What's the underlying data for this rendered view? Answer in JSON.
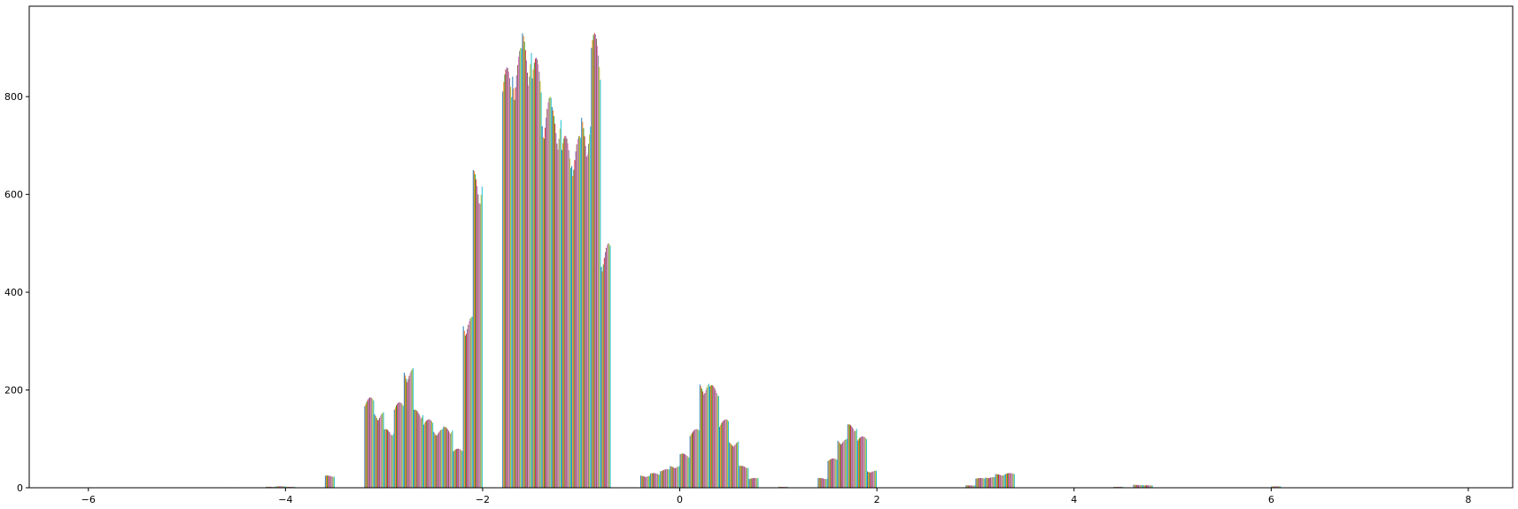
{
  "chart_data": {
    "type": "bar",
    "title": "",
    "xlabel": "",
    "ylabel": "",
    "xlim": [
      -6.6,
      8.45
    ],
    "ylim": [
      0,
      985
    ],
    "x_ticks": [
      -6,
      -4,
      -2,
      0,
      2,
      4,
      6,
      8
    ],
    "x_tick_labels": [
      "−6",
      "−4",
      "−2",
      "0",
      "2",
      "4",
      "6",
      "8"
    ],
    "y_ticks": [
      0,
      200,
      400,
      600,
      800
    ],
    "y_tick_labels": [
      "0",
      "200",
      "400",
      "600",
      "800"
    ],
    "grid": false,
    "legend": "none",
    "bin_width": 0.1,
    "palette": [
      "#1f77b4",
      "#ff7f0e",
      "#2ca02c",
      "#d62728",
      "#9467bd",
      "#8c564b",
      "#e377c2",
      "#7f7f7f",
      "#bcbd22",
      "#17becf"
    ],
    "bins": [
      {
        "x": -4.55,
        "v": 1
      },
      {
        "x": -4.15,
        "v": 2
      },
      {
        "x": -4.05,
        "v": 3
      },
      {
        "x": -3.95,
        "v": 2
      },
      {
        "x": -3.55,
        "v": 25
      },
      {
        "x": -3.15,
        "v": 185
      },
      {
        "x": -3.05,
        "v": 155
      },
      {
        "x": -2.95,
        "v": 120
      },
      {
        "x": -2.85,
        "v": 175
      },
      {
        "x": -2.75,
        "v": 245
      },
      {
        "x": -2.65,
        "v": 160
      },
      {
        "x": -2.55,
        "v": 140
      },
      {
        "x": -2.45,
        "v": 120
      },
      {
        "x": -2.35,
        "v": 125
      },
      {
        "x": -2.25,
        "v": 80
      },
      {
        "x": -2.15,
        "v": 350
      },
      {
        "x": -2.05,
        "v": 650
      },
      {
        "x": -1.75,
        "v": 860
      },
      {
        "x": -1.65,
        "v": 900
      },
      {
        "x": -1.55,
        "v": 930
      },
      {
        "x": -1.45,
        "v": 880
      },
      {
        "x": -1.35,
        "v": 800
      },
      {
        "x": -1.25,
        "v": 780
      },
      {
        "x": -1.15,
        "v": 720
      },
      {
        "x": -1.05,
        "v": 720
      },
      {
        "x": -0.95,
        "v": 760
      },
      {
        "x": -0.85,
        "v": 930
      },
      {
        "x": -0.75,
        "v": 500
      },
      {
        "x": -0.35,
        "v": 25
      },
      {
        "x": -0.25,
        "v": 30
      },
      {
        "x": -0.15,
        "v": 38
      },
      {
        "x": -0.05,
        "v": 45
      },
      {
        "x": 0.05,
        "v": 70
      },
      {
        "x": 0.15,
        "v": 120
      },
      {
        "x": 0.25,
        "v": 215
      },
      {
        "x": 0.35,
        "v": 210
      },
      {
        "x": 0.45,
        "v": 140
      },
      {
        "x": 0.55,
        "v": 95
      },
      {
        "x": 0.65,
        "v": 45
      },
      {
        "x": 0.75,
        "v": 20
      },
      {
        "x": 1.05,
        "v": 2
      },
      {
        "x": 1.45,
        "v": 20
      },
      {
        "x": 1.55,
        "v": 60
      },
      {
        "x": 1.65,
        "v": 100
      },
      {
        "x": 1.75,
        "v": 130
      },
      {
        "x": 1.85,
        "v": 105
      },
      {
        "x": 1.95,
        "v": 35
      },
      {
        "x": 2.95,
        "v": 5
      },
      {
        "x": 3.05,
        "v": 20
      },
      {
        "x": 3.15,
        "v": 22
      },
      {
        "x": 3.25,
        "v": 28
      },
      {
        "x": 3.35,
        "v": 30
      },
      {
        "x": 4.45,
        "v": 2
      },
      {
        "x": 4.65,
        "v": 6
      },
      {
        "x": 4.75,
        "v": 5
      },
      {
        "x": 6.05,
        "v": 3
      }
    ]
  }
}
